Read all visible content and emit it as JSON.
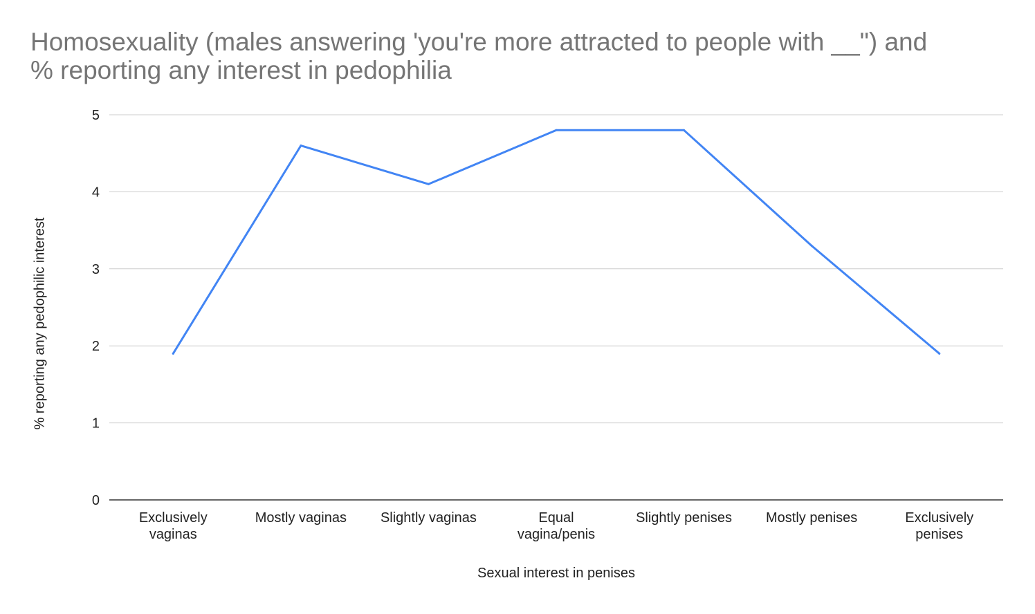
{
  "chart_data": {
    "type": "line",
    "title": [
      "Homosexuality (males answering 'you're more attracted to people with __\") and",
      "% reporting any interest in pedophilia"
    ],
    "xlabel": "Sexual interest in penises",
    "ylabel": "% reporting any pedophilic interest",
    "categories": [
      [
        "Exclusively",
        "vaginas"
      ],
      [
        "Mostly vaginas"
      ],
      [
        "Slightly vaginas"
      ],
      [
        "Equal",
        "vagina/penis"
      ],
      [
        "Slightly penises"
      ],
      [
        "Mostly penises"
      ],
      [
        "Exclusively",
        "penises"
      ]
    ],
    "series": [
      {
        "values": [
          1.9,
          4.6,
          4.1,
          4.8,
          4.8,
          3.3,
          1.9
        ],
        "color": "#4285f4"
      }
    ],
    "ylim": [
      0,
      5
    ],
    "yticks": [
      "0",
      "1",
      "2",
      "3",
      "4",
      "5"
    ],
    "grid": true,
    "legend": "none"
  }
}
